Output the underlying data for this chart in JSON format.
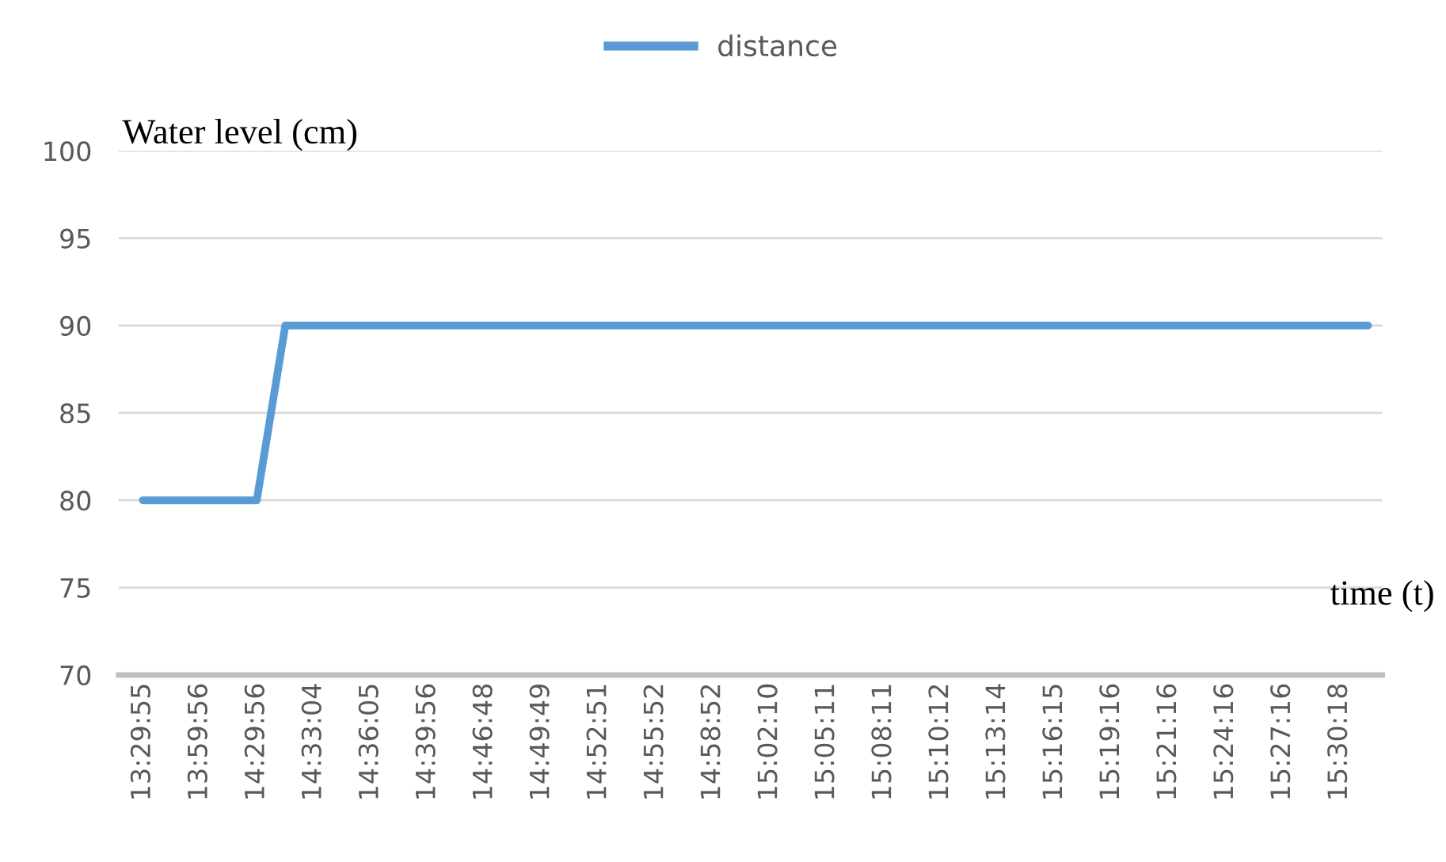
{
  "chart_data": {
    "type": "line",
    "xlabel": "time (t)",
    "ylabel": "Water level (cm)",
    "categories": [
      "13:29:55",
      null,
      "13:59:56",
      null,
      "14:29:56",
      null,
      "14:33:04",
      null,
      "14:36:05",
      null,
      "14:39:56",
      null,
      "14:46:48",
      null,
      "14:49:49",
      null,
      "14:52:51",
      null,
      "14:55:52",
      null,
      "14:58:52",
      null,
      "15:02:10",
      null,
      "15:05:11",
      null,
      "15:08:11",
      null,
      "15:10:12",
      null,
      "15:13:14",
      null,
      "15:16:15",
      null,
      "15:19:16",
      null,
      "15:21:16",
      null,
      "15:24:16",
      null,
      "15:27:16",
      null,
      "15:30:18",
      null
    ],
    "series": [
      {
        "name": "distance",
        "color": "#5b9bd5",
        "values": [
          80,
          80,
          80,
          80,
          80,
          90,
          90,
          90,
          90,
          90,
          90,
          90,
          90,
          90,
          90,
          90,
          90,
          90,
          90,
          90,
          90,
          90,
          90,
          90,
          90,
          90,
          90,
          90,
          90,
          90,
          90,
          90,
          90,
          90,
          90,
          90,
          90,
          90,
          90,
          90,
          90,
          90,
          90,
          90
        ]
      }
    ],
    "ylim": [
      70,
      100
    ],
    "yticks": [
      70,
      75,
      80,
      85,
      90,
      95,
      100
    ],
    "grid": "y",
    "legend": "top",
    "marker": "none",
    "line_style": "solid"
  }
}
